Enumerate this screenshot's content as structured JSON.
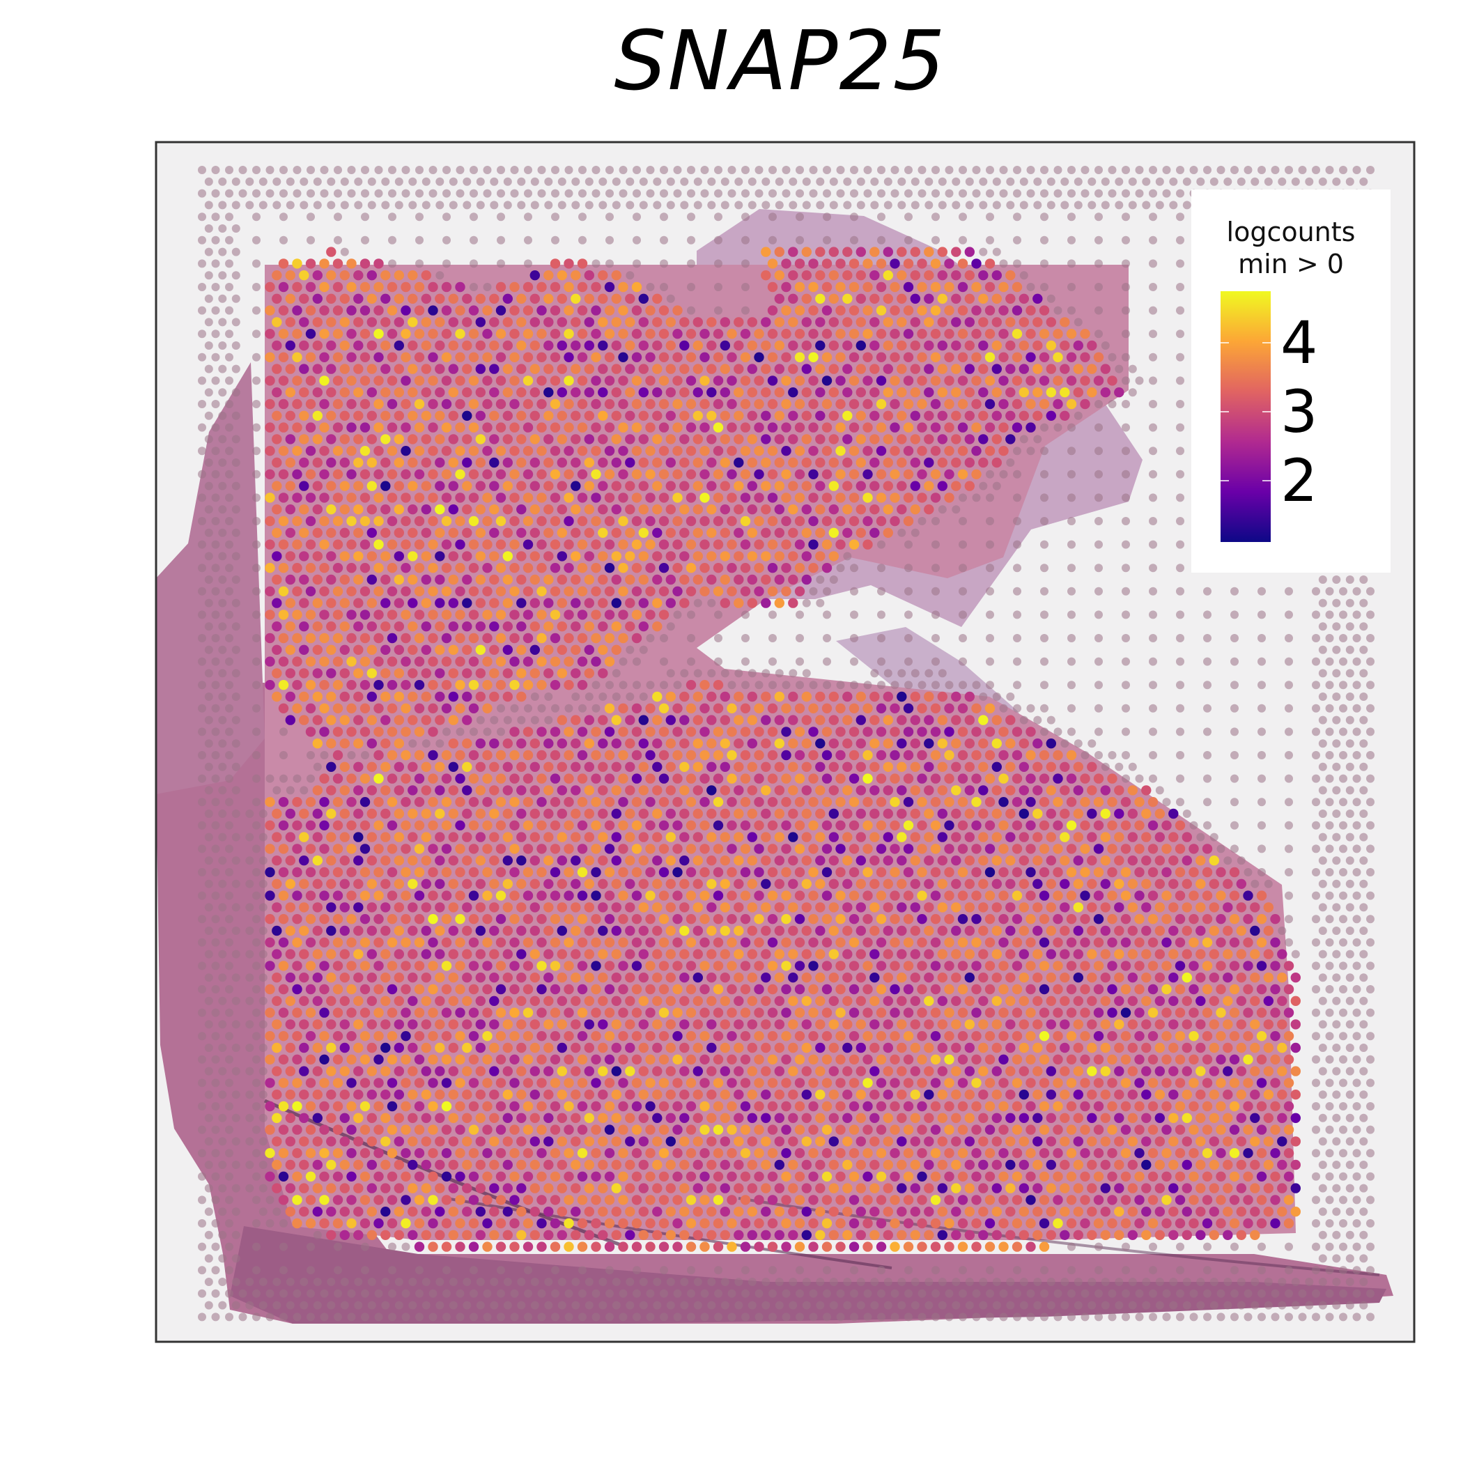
{
  "title": "SNAP25",
  "chart_data": {
    "type": "scatter",
    "title": "SNAP25",
    "xlabel": "",
    "ylabel": "",
    "background": "H&E tissue image with Visium spot grid",
    "color_variable": "logcounts",
    "legend": {
      "title": "logcounts\nmin > 0",
      "ticks": [
        2,
        3,
        4
      ],
      "range": [
        1.5,
        5.0
      ],
      "placement": "top-right",
      "colormap": "plasma",
      "colormap_stops": [
        "#0d0887",
        "#6a00a8",
        "#b12a90",
        "#e16462",
        "#fca636",
        "#f0f921"
      ]
    },
    "value_summary": {
      "dominant_range": [
        3.0,
        4.2
      ],
      "low_value_spots_range": [
        1.5,
        2.5
      ],
      "high_value_spots_range": [
        4.3,
        5.0
      ]
    },
    "grid": false,
    "axes_ticks": false
  }
}
